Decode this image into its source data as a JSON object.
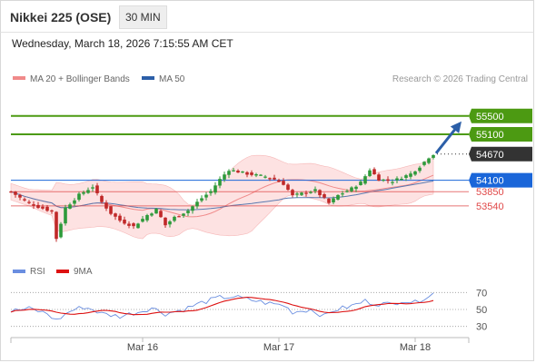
{
  "header": {
    "title": "Nikkei 225 (OSE)",
    "interval": "30 MIN"
  },
  "datetime": "Wednesday, March 18, 2026 7:15:55 AM CET",
  "legend": {
    "ma": "MA 20 + Bollinger Bands",
    "ma50": "MA 50",
    "credit": "Research © 2026 Trading Central"
  },
  "colors": {
    "green": "#4c9a12",
    "blue": "#1a66d9",
    "red": "#e04848",
    "dark": "#333333",
    "candle_up": "#2d9a3a",
    "candle_down": "#c02828",
    "bb_fill": "#fde2e2",
    "ma20": "#f08a8a",
    "ma50": "#5a7ab0",
    "rsi": "#6a8ee0",
    "rsi_ma": "#dd1111",
    "arrow": "#2c5fa8"
  },
  "chart_data": [
    {
      "type": "candlestick",
      "name": "price",
      "ylim": [
        52450,
        56050
      ],
      "x_tick_labels": [
        "Mar 16",
        "Mar 17",
        "Mar 18"
      ],
      "x_tick_bars": [
        29,
        59,
        89
      ],
      "bars": 94,
      "anchors": [
        [
          0,
          53850
        ],
        [
          3,
          53650
        ],
        [
          6,
          53520
        ],
        [
          9,
          53420
        ],
        [
          10,
          52830
        ],
        [
          12,
          53500
        ],
        [
          15,
          53780
        ],
        [
          18,
          53960
        ],
        [
          20,
          53620
        ],
        [
          22,
          53380
        ],
        [
          24,
          53220
        ],
        [
          27,
          53090
        ],
        [
          30,
          53340
        ],
        [
          32,
          53460
        ],
        [
          34,
          53120
        ],
        [
          36,
          53290
        ],
        [
          39,
          53440
        ],
        [
          42,
          53710
        ],
        [
          44,
          53860
        ],
        [
          46,
          54120
        ],
        [
          48,
          54330
        ],
        [
          52,
          54240
        ],
        [
          56,
          54180
        ],
        [
          58,
          54120
        ],
        [
          60,
          54020
        ],
        [
          62,
          53760
        ],
        [
          64,
          53810
        ],
        [
          67,
          53880
        ],
        [
          70,
          53600
        ],
        [
          72,
          53770
        ],
        [
          75,
          53920
        ],
        [
          77,
          54050
        ],
        [
          79,
          54330
        ],
        [
          81,
          54120
        ],
        [
          84,
          54080
        ],
        [
          88,
          54240
        ],
        [
          90,
          54400
        ],
        [
          92,
          54600
        ],
        [
          93,
          54670
        ]
      ],
      "levels": [
        {
          "label": "55500",
          "value": 55500,
          "role": "resistance 2",
          "color": "green"
        },
        {
          "label": "55100",
          "value": 55100,
          "role": "resistance 1",
          "color": "green"
        },
        {
          "label": "54670",
          "value": 54670,
          "role": "last price",
          "color": "dark"
        },
        {
          "label": "54100",
          "value": 54100,
          "role": "pivot",
          "color": "blue"
        },
        {
          "label": "53850",
          "value": 53850,
          "role": "support 1",
          "color": "red"
        },
        {
          "label": "53540",
          "value": 53540,
          "role": "support 2",
          "color": "red"
        }
      ],
      "arrow_target": 55500
    },
    {
      "type": "line",
      "name": "RSI",
      "ylim": [
        19,
        81
      ],
      "y_ticks": [
        70,
        50,
        30
      ],
      "legend": [
        "RSI",
        "9MA"
      ],
      "anchors": [
        [
          0,
          48
        ],
        [
          4,
          51
        ],
        [
          8,
          45
        ],
        [
          10,
          37
        ],
        [
          13,
          48
        ],
        [
          16,
          53
        ],
        [
          18,
          50
        ],
        [
          20,
          45
        ],
        [
          24,
          42
        ],
        [
          28,
          47
        ],
        [
          31,
          52
        ],
        [
          34,
          45
        ],
        [
          38,
          50
        ],
        [
          42,
          58
        ],
        [
          46,
          64
        ],
        [
          49,
          65
        ],
        [
          53,
          61
        ],
        [
          57,
          57
        ],
        [
          60,
          55
        ],
        [
          62,
          47
        ],
        [
          66,
          50
        ],
        [
          69,
          42
        ],
        [
          71,
          49
        ],
        [
          75,
          54
        ],
        [
          78,
          60
        ],
        [
          80,
          57
        ],
        [
          84,
          56
        ],
        [
          86,
          61
        ],
        [
          89,
          58
        ],
        [
          91,
          64
        ],
        [
          93,
          69
        ]
      ]
    }
  ]
}
